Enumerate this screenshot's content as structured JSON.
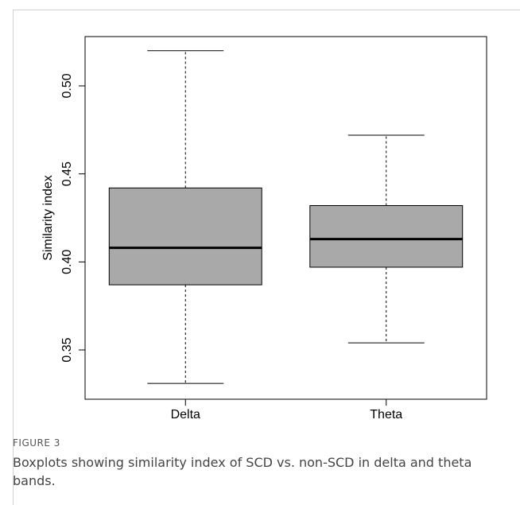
{
  "figure": {
    "label": "FIGURE 3",
    "caption": "Boxplots showing similarity index of SCD vs. non-SCD in delta and theta bands."
  },
  "chart_data": {
    "type": "box",
    "ylabel": "Similarity index",
    "xlabel": "",
    "ylim": [
      0.322,
      0.528
    ],
    "yticks": [
      {
        "value": 0.35,
        "label": "0.35"
      },
      {
        "value": 0.4,
        "label": "0.40"
      },
      {
        "value": 0.45,
        "label": "0.45"
      },
      {
        "value": 0.5,
        "label": "0.50"
      }
    ],
    "categories": [
      "Delta",
      "Theta"
    ],
    "boxes": [
      {
        "name": "Delta",
        "min": 0.331,
        "q1": 0.387,
        "median": 0.408,
        "q3": 0.442,
        "max": 0.52
      },
      {
        "name": "Theta",
        "min": 0.354,
        "q1": 0.397,
        "median": 0.413,
        "q3": 0.432,
        "max": 0.472
      }
    ],
    "box_fill": "#a9a9a9",
    "grid": false,
    "legend": "none"
  }
}
